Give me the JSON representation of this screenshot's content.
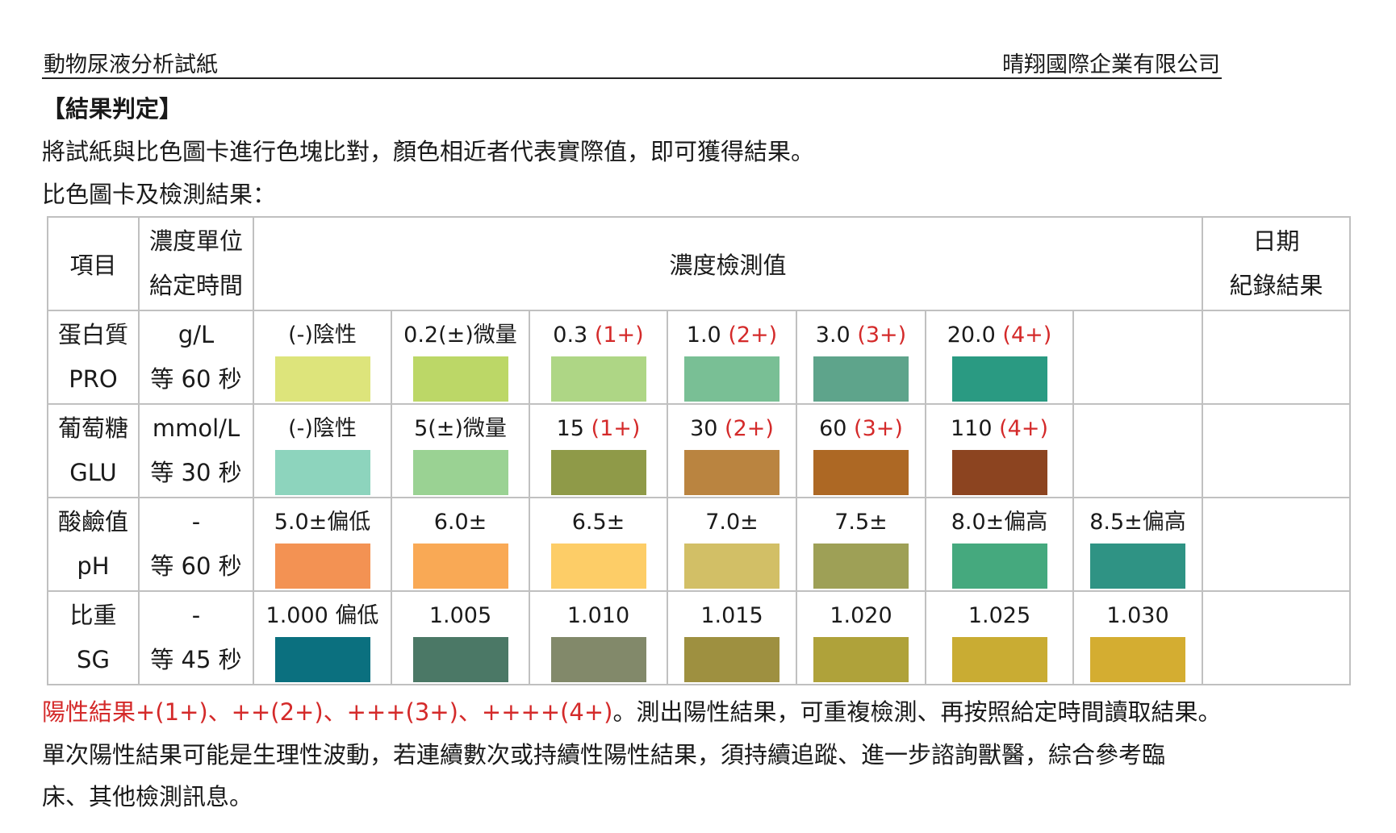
{
  "header": {
    "left": "動物尿液分析試紙",
    "right": "晴翔國際企業有限公司"
  },
  "section_title": "【結果判定】",
  "intro": "將試紙與比色圖卡進行色塊比對，顏色相近者代表實際值，即可獲得結果。",
  "caption": "比色圖卡及檢測結果：",
  "table": {
    "head": {
      "item": "項目",
      "unit1": "濃度單位",
      "unit2": "給定時間",
      "values": "濃度檢測值",
      "date1": "日期",
      "date2": "紀錄結果"
    },
    "rows": [
      {
        "name1": "蛋白質",
        "name2": "PRO",
        "unit": "g/L",
        "time": "等 60 秒",
        "cells": [
          {
            "label": "(-)陰性",
            "pos": "",
            "color": "#dde47b"
          },
          {
            "label": "0.2(±)微量",
            "pos": "",
            "color": "#bcd767"
          },
          {
            "label": "0.3 ",
            "pos": "(1+)",
            "color": "#aed685"
          },
          {
            "label": "1.0 ",
            "pos": "(2+)",
            "color": "#79bf95"
          },
          {
            "label": "3.0 ",
            "pos": "(3+)",
            "color": "#5ea48b"
          },
          {
            "label": "20.0 ",
            "pos": "(4+)",
            "color": "#2a9a82"
          },
          {
            "label": "",
            "pos": "",
            "color": ""
          }
        ]
      },
      {
        "name1": "葡萄糖",
        "name2": "GLU",
        "unit": "mmol/L",
        "time": "等 30 秒",
        "cells": [
          {
            "label": "(-)陰性",
            "pos": "",
            "color": "#8dd4bd"
          },
          {
            "label": "5(±)微量",
            "pos": "",
            "color": "#9ad293"
          },
          {
            "label": "15 ",
            "pos": "(1+)",
            "color": "#8f9a48"
          },
          {
            "label": "30 ",
            "pos": "(2+)",
            "color": "#ba8440"
          },
          {
            "label": "60 ",
            "pos": "(3+)",
            "color": "#ad6824"
          },
          {
            "label": "110 ",
            "pos": "(4+)",
            "color": "#8c4420"
          },
          {
            "label": "",
            "pos": "",
            "color": ""
          }
        ]
      },
      {
        "name1": "酸鹼值",
        "name2": "pH",
        "unit": "-",
        "time": "等 60 秒",
        "cells": [
          {
            "label": "5.0±偏低",
            "pos": "",
            "color": "#f39253"
          },
          {
            "label": "6.0±",
            "pos": "",
            "color": "#f9a955"
          },
          {
            "label": "6.5±",
            "pos": "",
            "color": "#fdcd67"
          },
          {
            "label": "7.0±",
            "pos": "",
            "color": "#d2bf66"
          },
          {
            "label": "7.5±",
            "pos": "",
            "color": "#9ea056"
          },
          {
            "label": "8.0±偏高",
            "pos": "",
            "color": "#45a97e"
          },
          {
            "label": "8.5±偏高",
            "pos": "",
            "color": "#2f9384"
          }
        ]
      },
      {
        "name1": "比重",
        "name2": "SG",
        "unit": "-",
        "time": "等 45 秒",
        "cells": [
          {
            "label": "1.000 偏低",
            "pos": "",
            "color": "#0b707f"
          },
          {
            "label": "1.005",
            "pos": "",
            "color": "#4b7866"
          },
          {
            "label": "1.010",
            "pos": "",
            "color": "#82896a"
          },
          {
            "label": "1.015",
            "pos": "",
            "color": "#9e9040"
          },
          {
            "label": "1.020",
            "pos": "",
            "color": "#afa23a"
          },
          {
            "label": "1.025",
            "pos": "",
            "color": "#c9ac33"
          },
          {
            "label": "1.030",
            "pos": "",
            "color": "#d4ad31"
          }
        ]
      }
    ]
  },
  "footer": {
    "line1_red": "陽性結果+(1+)、++(2+)、+++(3+)、++++(4+)",
    "line1_rest": "。測出陽性結果，可重複檢測、再按照給定時間讀取結果。",
    "line2": "單次陽性結果可能是生理性波動，若連續數次或持續性陽性結果，須持續追蹤、進一步諮詢獸醫，綜合參考臨",
    "line3": "床、其他檢測訊息。"
  },
  "colors": {
    "positive": "#d42a2a",
    "grid": "#c0c0c0"
  }
}
